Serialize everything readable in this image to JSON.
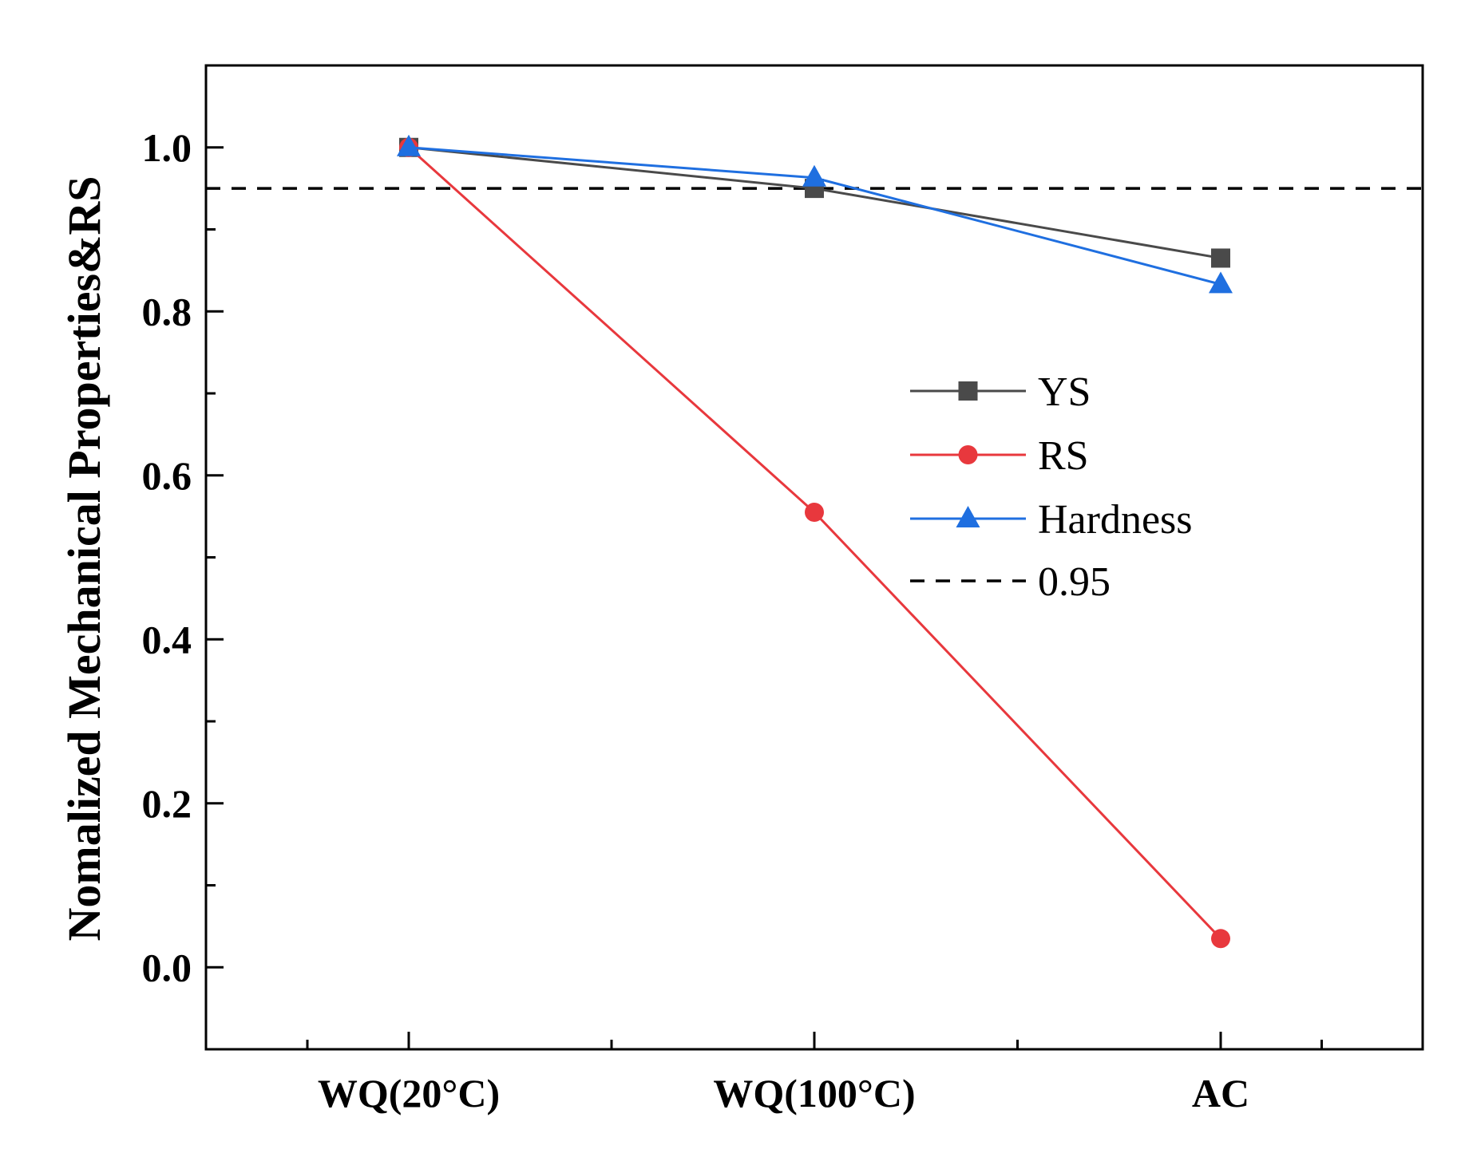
{
  "chart_data": {
    "type": "line",
    "title": "",
    "xlabel": "",
    "ylabel": "Nomalized Mechanical Properties&RS",
    "categories": [
      "WQ(20°C)",
      "WQ(100°C)",
      "AC"
    ],
    "ylim": [
      -0.1,
      1.1
    ],
    "yticks": [
      0.0,
      0.2,
      0.4,
      0.6,
      0.8,
      1.0
    ],
    "ytick_labels": [
      "0.0",
      "0.2",
      "0.4",
      "0.6",
      "0.8",
      "1.0"
    ],
    "grid": false,
    "legend_position": "center-right",
    "series": [
      {
        "name": "YS",
        "values": [
          1.0,
          0.95,
          0.865
        ],
        "color": "#4a4a4a",
        "marker": "square"
      },
      {
        "name": "RS",
        "values": [
          1.0,
          0.555,
          0.035
        ],
        "color": "#e8383d",
        "marker": "circle"
      },
      {
        "name": "Hardness",
        "values": [
          1.0,
          0.963,
          0.833
        ],
        "color": "#1f6fe0",
        "marker": "triangle"
      }
    ],
    "reference_line": {
      "name": "0.95",
      "value": 0.95,
      "color": "#000000",
      "style": "dashed"
    }
  }
}
